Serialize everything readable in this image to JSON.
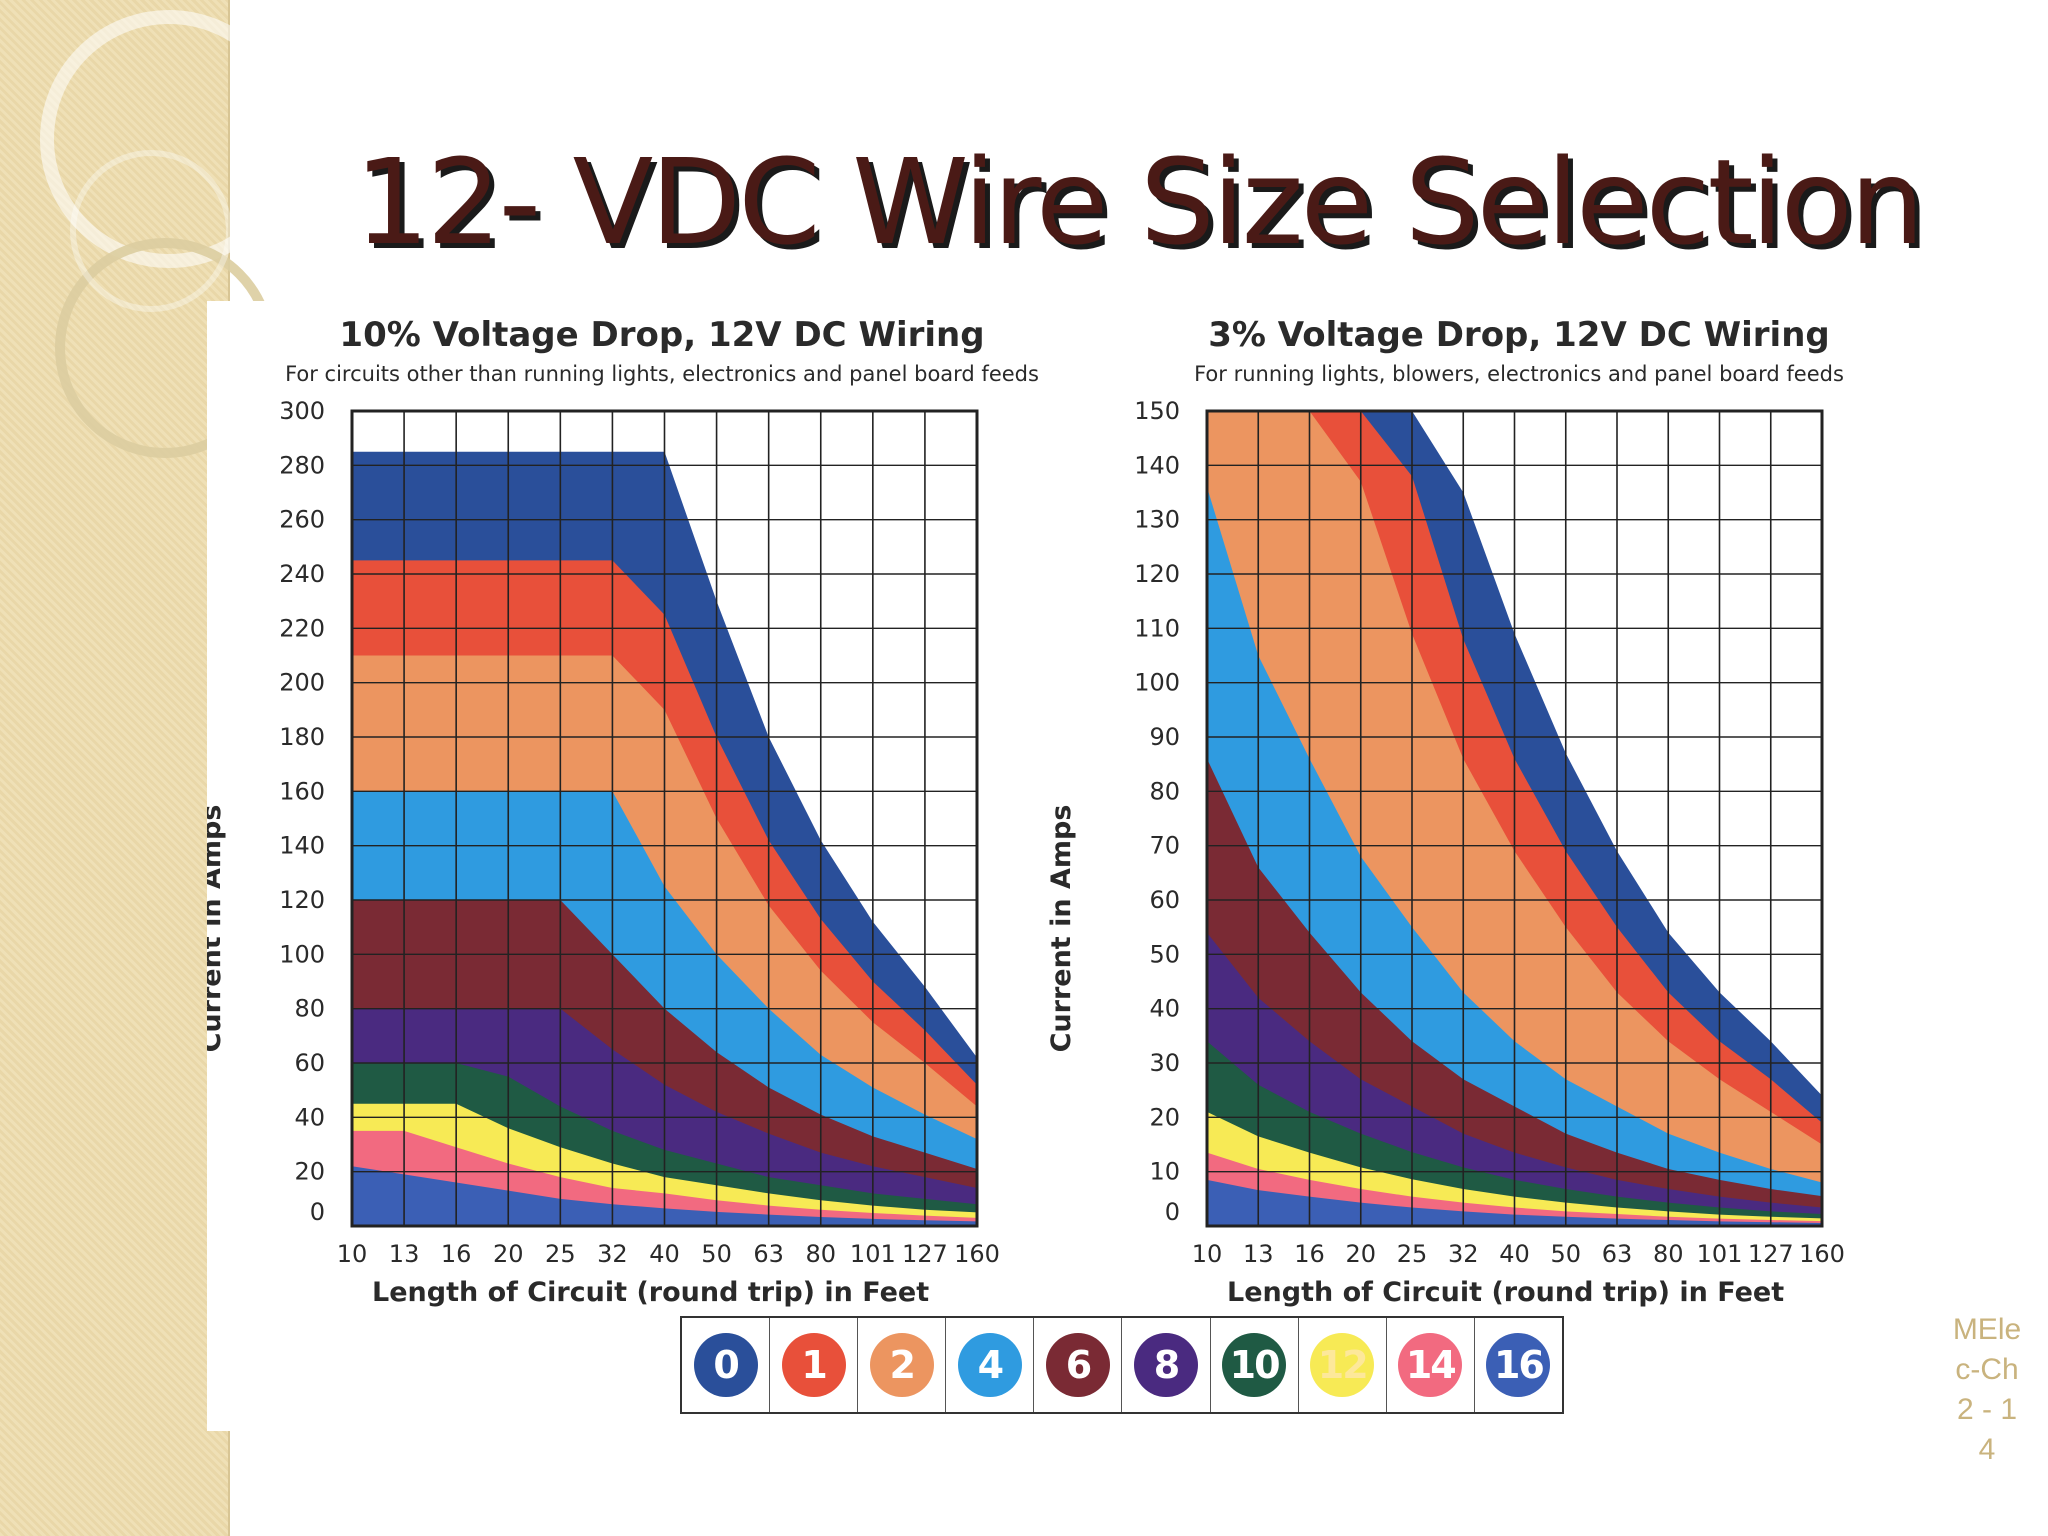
{
  "slide": {
    "title": "12- VDC Wire Size Selection",
    "slide_number": "MElec-Ch 2 - 14"
  },
  "chart_data": [
    {
      "type": "area",
      "title": "10% Voltage Drop, 12V DC Wiring",
      "subtitle": "For circuits other than running lights, electronics and panel board feeds",
      "xlabel": "Length of Circuit (round trip) in Feet",
      "ylabel": "Current in Amps",
      "x_ticks": [
        "10",
        "13",
        "16",
        "20",
        "25",
        "32",
        "40",
        "50",
        "63",
        "80",
        "101",
        "127",
        "160"
      ],
      "y_ticks": [
        0,
        20,
        40,
        60,
        80,
        100,
        120,
        140,
        160,
        180,
        200,
        220,
        240,
        260,
        280,
        300
      ],
      "ylim": [
        0,
        300
      ],
      "grid": true,
      "series": [
        {
          "name": "0",
          "color": "#2a4f9a",
          "values": [
            285,
            285,
            285,
            285,
            285,
            285,
            285,
            230,
            180,
            142,
            112,
            88,
            62
          ]
        },
        {
          "name": "1",
          "color": "#e8503a",
          "values": [
            245,
            245,
            245,
            245,
            245,
            245,
            225,
            180,
            142,
            113,
            90,
            72,
            52
          ]
        },
        {
          "name": "2",
          "color": "#ec9560",
          "values": [
            210,
            210,
            210,
            210,
            210,
            210,
            190,
            150,
            118,
            94,
            75,
            60,
            44
          ]
        },
        {
          "name": "4",
          "color": "#2f9be0",
          "values": [
            160,
            160,
            160,
            160,
            160,
            160,
            125,
            100,
            80,
            63,
            51,
            41,
            32
          ]
        },
        {
          "name": "6",
          "color": "#7a2a34",
          "values": [
            120,
            120,
            120,
            120,
            120,
            100,
            80,
            64,
            51,
            41,
            33,
            27,
            21
          ]
        },
        {
          "name": "8",
          "color": "#4a2a80",
          "values": [
            80,
            80,
            80,
            80,
            80,
            65,
            52,
            42,
            34,
            27,
            22,
            18,
            14
          ]
        },
        {
          "name": "10",
          "color": "#1f5a44",
          "values": [
            60,
            60,
            60,
            55,
            44,
            35,
            28,
            23,
            18,
            15,
            12,
            10,
            8
          ]
        },
        {
          "name": "12",
          "color": "#f7ea55",
          "values": [
            45,
            45,
            45,
            36,
            29,
            23,
            18,
            15,
            12,
            9.5,
            7.5,
            6,
            5
          ]
        },
        {
          "name": "14",
          "color": "#f26a80",
          "values": [
            35,
            35,
            29,
            23,
            18,
            14,
            12,
            9.5,
            7.5,
            6,
            4.8,
            3.8,
            3
          ]
        },
        {
          "name": "16",
          "color": "#3b5fb5",
          "values": [
            22,
            19,
            16,
            13,
            10,
            8,
            6.5,
            5.2,
            4.2,
            3.3,
            2.6,
            2.1,
            1.7
          ]
        }
      ]
    },
    {
      "type": "area",
      "title": "3% Voltage Drop, 12V DC Wiring",
      "subtitle": "For running lights, blowers, electronics and panel board feeds",
      "xlabel": "Length of Circuit (round trip) in Feet",
      "ylabel": "Current in Amps",
      "x_ticks": [
        "10",
        "13",
        "16",
        "20",
        "25",
        "32",
        "40",
        "50",
        "63",
        "80",
        "101",
        "127",
        "160"
      ],
      "y_ticks": [
        0,
        10,
        20,
        30,
        40,
        50,
        60,
        70,
        80,
        90,
        100,
        110,
        120,
        130,
        140,
        150
      ],
      "ylim": [
        0,
        150
      ],
      "grid": true,
      "series": [
        {
          "name": "0",
          "color": "#2a4f9a",
          "values": [
            150,
            150,
            150,
            150,
            150,
            135,
            109,
            87,
            69,
            54,
            43,
            34,
            24
          ]
        },
        {
          "name": "1",
          "color": "#e8503a",
          "values": [
            150,
            150,
            150,
            150,
            138,
            108,
            86,
            69,
            55,
            43,
            34,
            27,
            19
          ]
        },
        {
          "name": "2",
          "color": "#ec9560",
          "values": [
            150,
            150,
            150,
            137,
            109,
            86,
            69,
            55,
            43,
            34,
            27,
            21,
            15
          ]
        },
        {
          "name": "4",
          "color": "#2f9be0",
          "values": [
            136,
            105,
            86,
            68,
            55,
            43,
            34,
            27,
            22,
            17,
            13.5,
            10.5,
            8
          ]
        },
        {
          "name": "6",
          "color": "#7a2a34",
          "values": [
            86,
            66,
            54,
            43,
            34,
            27,
            22,
            17,
            13.5,
            10.5,
            8.5,
            6.8,
            5.5
          ]
        },
        {
          "name": "8",
          "color": "#4a2a80",
          "values": [
            54,
            42,
            34,
            27,
            22,
            17,
            13.5,
            10.8,
            8.5,
            6.8,
            5.4,
            4.3,
            3.4
          ]
        },
        {
          "name": "10",
          "color": "#1f5a44",
          "values": [
            34,
            26,
            21,
            17,
            13.6,
            10.8,
            8.5,
            6.8,
            5.4,
            4.3,
            3.4,
            2.7,
            2.2
          ]
        },
        {
          "name": "12",
          "color": "#f7ea55",
          "values": [
            21,
            16.5,
            13.5,
            10.8,
            8.6,
            6.8,
            5.4,
            4.3,
            3.4,
            2.7,
            2.1,
            1.7,
            1.4
          ]
        },
        {
          "name": "14",
          "color": "#f26a80",
          "values": [
            13.5,
            10.5,
            8.5,
            6.8,
            5.4,
            4.3,
            3.4,
            2.7,
            2.2,
            1.7,
            1.35,
            1.1,
            0.9
          ]
        },
        {
          "name": "16",
          "color": "#3b5fb5",
          "values": [
            8.5,
            6.6,
            5.4,
            4.3,
            3.4,
            2.7,
            2.1,
            1.7,
            1.35,
            1.1,
            0.85,
            0.7,
            0.55
          ]
        }
      ]
    }
  ],
  "legend": [
    {
      "label": "0",
      "color": "#2a4f9a"
    },
    {
      "label": "1",
      "color": "#e8503a"
    },
    {
      "label": "2",
      "color": "#ec9560"
    },
    {
      "label": "4",
      "color": "#2f9be0"
    },
    {
      "label": "6",
      "color": "#7a2a34"
    },
    {
      "label": "8",
      "color": "#4a2a80"
    },
    {
      "label": "10",
      "color": "#1f5a44"
    },
    {
      "label": "12",
      "color": "#f7ea55"
    },
    {
      "label": "14",
      "color": "#f26a80"
    },
    {
      "label": "16",
      "color": "#3b5fb5"
    }
  ]
}
